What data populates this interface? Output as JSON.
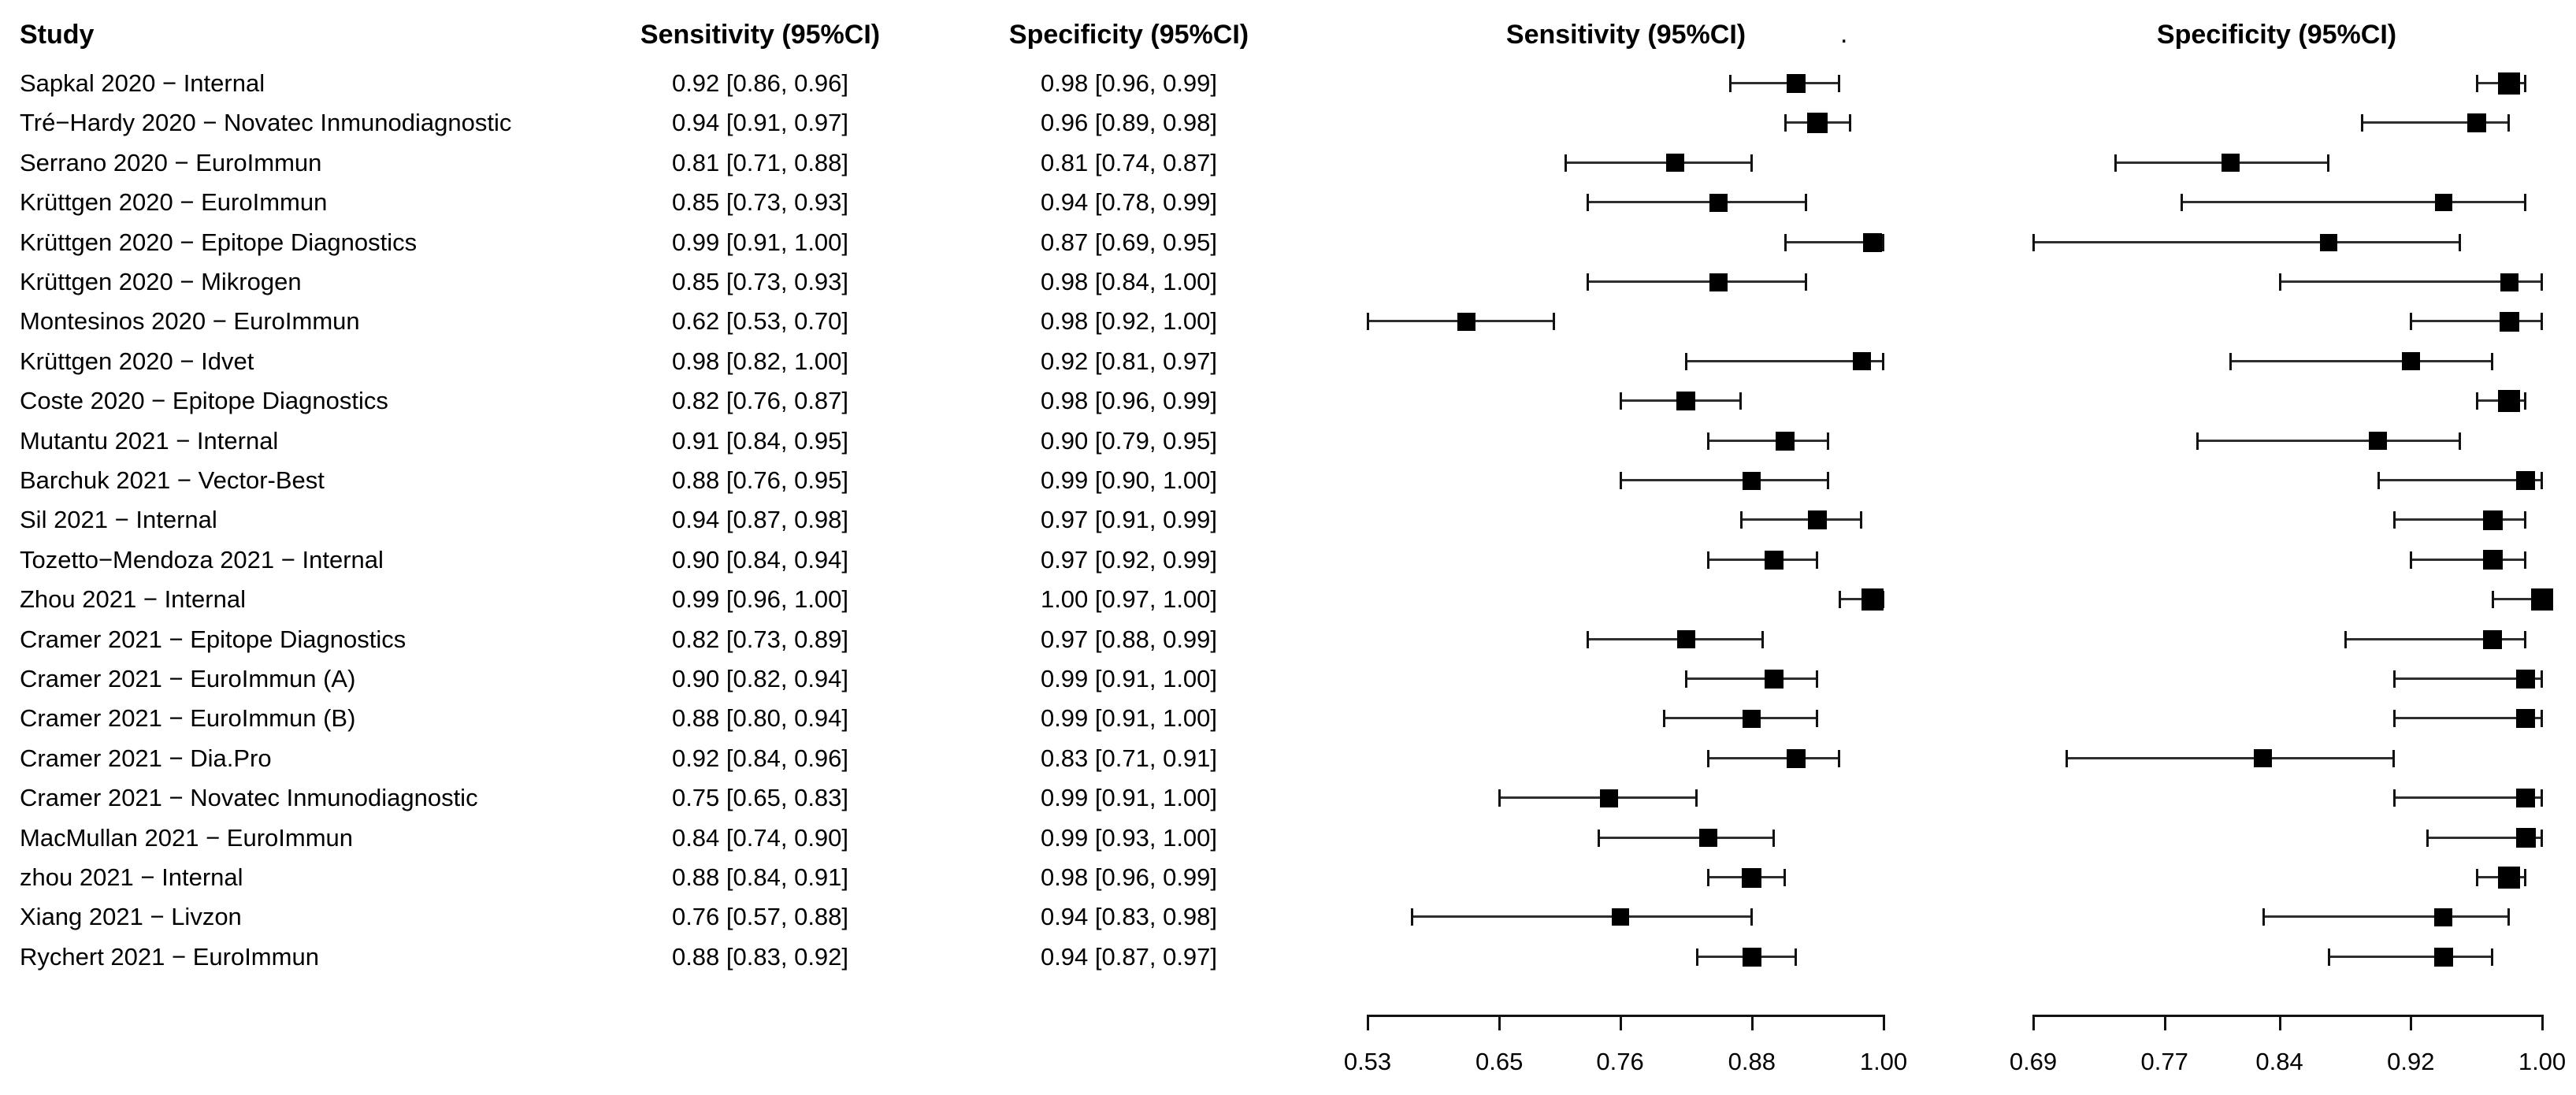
{
  "figure": {
    "background": "#ffffff",
    "text_color": "#000000",
    "line_color": "#2e2e2e",
    "marker_color": "#000000"
  },
  "headers": {
    "study": "Study",
    "sensitivity_text_col": "Sensitivity (95%CI)",
    "specificity_text_col": "Specificity (95%CI)",
    "sensitivity_plot": "Sensitivity (95%CI)",
    "specificity_plot": "Specificity (95%CI)",
    "stray_dot": "."
  },
  "chart_data": {
    "type": "forest",
    "title": "Sensitivity and specificity forest plot by study",
    "legend_position": "none",
    "grid": false,
    "panels": [
      {
        "name": "sensitivity",
        "header": "Sensitivity (95%CI)",
        "axis_min": 0.53,
        "axis_max": 1.0,
        "ticks": [
          "0.53",
          "0.65",
          "0.76",
          "0.88",
          "1.00"
        ]
      },
      {
        "name": "specificity",
        "header": "Specificity (95%CI)",
        "axis_min": 0.69,
        "axis_max": 1.0,
        "ticks": [
          "0.69",
          "0.77",
          "0.84",
          "0.92",
          "1.00"
        ]
      }
    ],
    "studies": [
      {
        "label": "Sapkal 2020 − Internal",
        "sens": {
          "est": 0.92,
          "lo": 0.86,
          "hi": 0.96,
          "text": "0.92 [0.86, 0.96]"
        },
        "spec": {
          "est": 0.98,
          "lo": 0.96,
          "hi": 0.99,
          "text": "0.98 [0.96, 0.99]"
        }
      },
      {
        "label": "Tré−Hardy 2020 − Novatec Inmunodiagnostic",
        "sens": {
          "est": 0.94,
          "lo": 0.91,
          "hi": 0.97,
          "text": "0.94 [0.91, 0.97]"
        },
        "spec": {
          "est": 0.96,
          "lo": 0.89,
          "hi": 0.98,
          "text": "0.96 [0.89, 0.98]"
        }
      },
      {
        "label": "Serrano 2020 − EuroImmun",
        "sens": {
          "est": 0.81,
          "lo": 0.71,
          "hi": 0.88,
          "text": "0.81 [0.71, 0.88]"
        },
        "spec": {
          "est": 0.81,
          "lo": 0.74,
          "hi": 0.87,
          "text": "0.81 [0.74, 0.87]"
        }
      },
      {
        "label": "Krüttgen 2020 − EuroImmun",
        "sens": {
          "est": 0.85,
          "lo": 0.73,
          "hi": 0.93,
          "text": "0.85 [0.73, 0.93]"
        },
        "spec": {
          "est": 0.94,
          "lo": 0.78,
          "hi": 0.99,
          "text": "0.94 [0.78, 0.99]"
        }
      },
      {
        "label": "Krüttgen 2020 − Epitope Diagnostics",
        "sens": {
          "est": 0.99,
          "lo": 0.91,
          "hi": 1.0,
          "text": "0.99 [0.91, 1.00]"
        },
        "spec": {
          "est": 0.87,
          "lo": 0.69,
          "hi": 0.95,
          "text": "0.87 [0.69, 0.95]"
        }
      },
      {
        "label": "Krüttgen 2020 − Mikrogen",
        "sens": {
          "est": 0.85,
          "lo": 0.73,
          "hi": 0.93,
          "text": "0.85 [0.73, 0.93]"
        },
        "spec": {
          "est": 0.98,
          "lo": 0.84,
          "hi": 1.0,
          "text": "0.98 [0.84, 1.00]"
        }
      },
      {
        "label": "Montesinos 2020 − EuroImmun",
        "sens": {
          "est": 0.62,
          "lo": 0.53,
          "hi": 0.7,
          "text": "0.62 [0.53, 0.70]"
        },
        "spec": {
          "est": 0.98,
          "lo": 0.92,
          "hi": 1.0,
          "text": "0.98 [0.92, 1.00]"
        }
      },
      {
        "label": "Krüttgen 2020 − Idvet",
        "sens": {
          "est": 0.98,
          "lo": 0.82,
          "hi": 1.0,
          "text": "0.98 [0.82, 1.00]"
        },
        "spec": {
          "est": 0.92,
          "lo": 0.81,
          "hi": 0.97,
          "text": "0.92 [0.81, 0.97]"
        }
      },
      {
        "label": "Coste 2020 − Epitope Diagnostics",
        "sens": {
          "est": 0.82,
          "lo": 0.76,
          "hi": 0.87,
          "text": "0.82 [0.76, 0.87]"
        },
        "spec": {
          "est": 0.98,
          "lo": 0.96,
          "hi": 0.99,
          "text": "0.98 [0.96, 0.99]"
        }
      },
      {
        "label": "Mutantu 2021 − Internal",
        "sens": {
          "est": 0.91,
          "lo": 0.84,
          "hi": 0.95,
          "text": "0.91 [0.84, 0.95]"
        },
        "spec": {
          "est": 0.9,
          "lo": 0.79,
          "hi": 0.95,
          "text": "0.90 [0.79, 0.95]"
        }
      },
      {
        "label": "Barchuk 2021 − Vector-Best",
        "sens": {
          "est": 0.88,
          "lo": 0.76,
          "hi": 0.95,
          "text": "0.88 [0.76, 0.95]"
        },
        "spec": {
          "est": 0.99,
          "lo": 0.9,
          "hi": 1.0,
          "text": "0.99 [0.90, 1.00]"
        }
      },
      {
        "label": "Sil 2021 − Internal",
        "sens": {
          "est": 0.94,
          "lo": 0.87,
          "hi": 0.98,
          "text": "0.94 [0.87, 0.98]"
        },
        "spec": {
          "est": 0.97,
          "lo": 0.91,
          "hi": 0.99,
          "text": "0.97 [0.91, 0.99]"
        }
      },
      {
        "label": "Tozetto−Mendoza 2021 − Internal",
        "sens": {
          "est": 0.9,
          "lo": 0.84,
          "hi": 0.94,
          "text": "0.90 [0.84, 0.94]"
        },
        "spec": {
          "est": 0.97,
          "lo": 0.92,
          "hi": 0.99,
          "text": "0.97 [0.92, 0.99]"
        }
      },
      {
        "label": "Zhou 2021 − Internal",
        "sens": {
          "est": 0.99,
          "lo": 0.96,
          "hi": 1.0,
          "text": "0.99 [0.96, 1.00]"
        },
        "spec": {
          "est": 1.0,
          "lo": 0.97,
          "hi": 1.0,
          "text": "1.00 [0.97, 1.00]"
        }
      },
      {
        "label": "Cramer 2021 − Epitope Diagnostics",
        "sens": {
          "est": 0.82,
          "lo": 0.73,
          "hi": 0.89,
          "text": "0.82 [0.73, 0.89]"
        },
        "spec": {
          "est": 0.97,
          "lo": 0.88,
          "hi": 0.99,
          "text": "0.97 [0.88, 0.99]"
        }
      },
      {
        "label": "Cramer 2021 − EuroImmun (A)",
        "sens": {
          "est": 0.9,
          "lo": 0.82,
          "hi": 0.94,
          "text": "0.90 [0.82, 0.94]"
        },
        "spec": {
          "est": 0.99,
          "lo": 0.91,
          "hi": 1.0,
          "text": "0.99 [0.91, 1.00]"
        }
      },
      {
        "label": "Cramer 2021 − EuroImmun (B)",
        "sens": {
          "est": 0.88,
          "lo": 0.8,
          "hi": 0.94,
          "text": "0.88 [0.80, 0.94]"
        },
        "spec": {
          "est": 0.99,
          "lo": 0.91,
          "hi": 1.0,
          "text": "0.99 [0.91, 1.00]"
        }
      },
      {
        "label": "Cramer 2021 − Dia.Pro",
        "sens": {
          "est": 0.92,
          "lo": 0.84,
          "hi": 0.96,
          "text": "0.92 [0.84, 0.96]"
        },
        "spec": {
          "est": 0.83,
          "lo": 0.71,
          "hi": 0.91,
          "text": "0.83 [0.71, 0.91]"
        }
      },
      {
        "label": "Cramer 2021 − Novatec Inmunodiagnostic",
        "sens": {
          "est": 0.75,
          "lo": 0.65,
          "hi": 0.83,
          "text": "0.75 [0.65, 0.83]"
        },
        "spec": {
          "est": 0.99,
          "lo": 0.91,
          "hi": 1.0,
          "text": "0.99 [0.91, 1.00]"
        }
      },
      {
        "label": "MacMullan 2021 − EuroImmun",
        "sens": {
          "est": 0.84,
          "lo": 0.74,
          "hi": 0.9,
          "text": "0.84 [0.74, 0.90]"
        },
        "spec": {
          "est": 0.99,
          "lo": 0.93,
          "hi": 1.0,
          "text": "0.99 [0.93, 1.00]"
        }
      },
      {
        "label": "zhou 2021 − Internal",
        "sens": {
          "est": 0.88,
          "lo": 0.84,
          "hi": 0.91,
          "text": "0.88 [0.84, 0.91]"
        },
        "spec": {
          "est": 0.98,
          "lo": 0.96,
          "hi": 0.99,
          "text": "0.98 [0.96, 0.99]"
        }
      },
      {
        "label": "Xiang 2021 − Livzon",
        "sens": {
          "est": 0.76,
          "lo": 0.57,
          "hi": 0.88,
          "text": "0.76 [0.57, 0.88]"
        },
        "spec": {
          "est": 0.94,
          "lo": 0.83,
          "hi": 0.98,
          "text": "0.94 [0.83, 0.98]"
        }
      },
      {
        "label": "Rychert 2021 − EuroImmun",
        "sens": {
          "est": 0.88,
          "lo": 0.83,
          "hi": 0.92,
          "text": "0.88 [0.83, 0.92]"
        },
        "spec": {
          "est": 0.94,
          "lo": 0.87,
          "hi": 0.97,
          "text": "0.94 [0.87, 0.97]"
        }
      }
    ]
  }
}
